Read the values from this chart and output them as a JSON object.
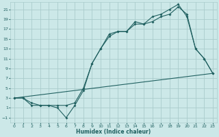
{
  "xlabel": "Humidex (Indice chaleur)",
  "bg_color": "#cce8e8",
  "grid_color": "#aacccc",
  "line_color": "#206060",
  "xlim": [
    -0.5,
    23.5
  ],
  "ylim": [
    -2,
    22.5
  ],
  "xticks": [
    0,
    1,
    2,
    3,
    4,
    5,
    6,
    7,
    8,
    9,
    10,
    11,
    12,
    13,
    14,
    15,
    16,
    17,
    18,
    19,
    20,
    21,
    22,
    23
  ],
  "yticks": [
    -1,
    1,
    3,
    5,
    7,
    9,
    11,
    13,
    15,
    17,
    19,
    21
  ],
  "line1_x": [
    0,
    1,
    2,
    3,
    4,
    5,
    6,
    7,
    8,
    9,
    10,
    11,
    12,
    13,
    14,
    15,
    16,
    17,
    18,
    19,
    20,
    21,
    22,
    23
  ],
  "line1_y": [
    3,
    3,
    2,
    1.5,
    1.5,
    1.5,
    1.5,
    2,
    5,
    10,
    13,
    15.5,
    16.5,
    16.5,
    18,
    18,
    18.5,
    19.5,
    20,
    21.5,
    20,
    13,
    11,
    8
  ],
  "line2_x": [
    0,
    1,
    2,
    3,
    4,
    5,
    6,
    7,
    8,
    9,
    10,
    11,
    12,
    13,
    14,
    15,
    16,
    17,
    18,
    19,
    20,
    21,
    22,
    23
  ],
  "line2_y": [
    3,
    3,
    1.5,
    1.5,
    1.5,
    1,
    -1,
    1.5,
    4.5,
    10,
    13,
    16,
    16.5,
    16.5,
    18.5,
    18,
    19.5,
    20,
    21,
    22,
    19.5,
    13,
    11,
    8
  ],
  "line3_x": [
    0,
    23
  ],
  "line3_y": [
    3,
    8
  ],
  "xlabel_fontsize": 5.5,
  "tick_fontsize": 4.5
}
